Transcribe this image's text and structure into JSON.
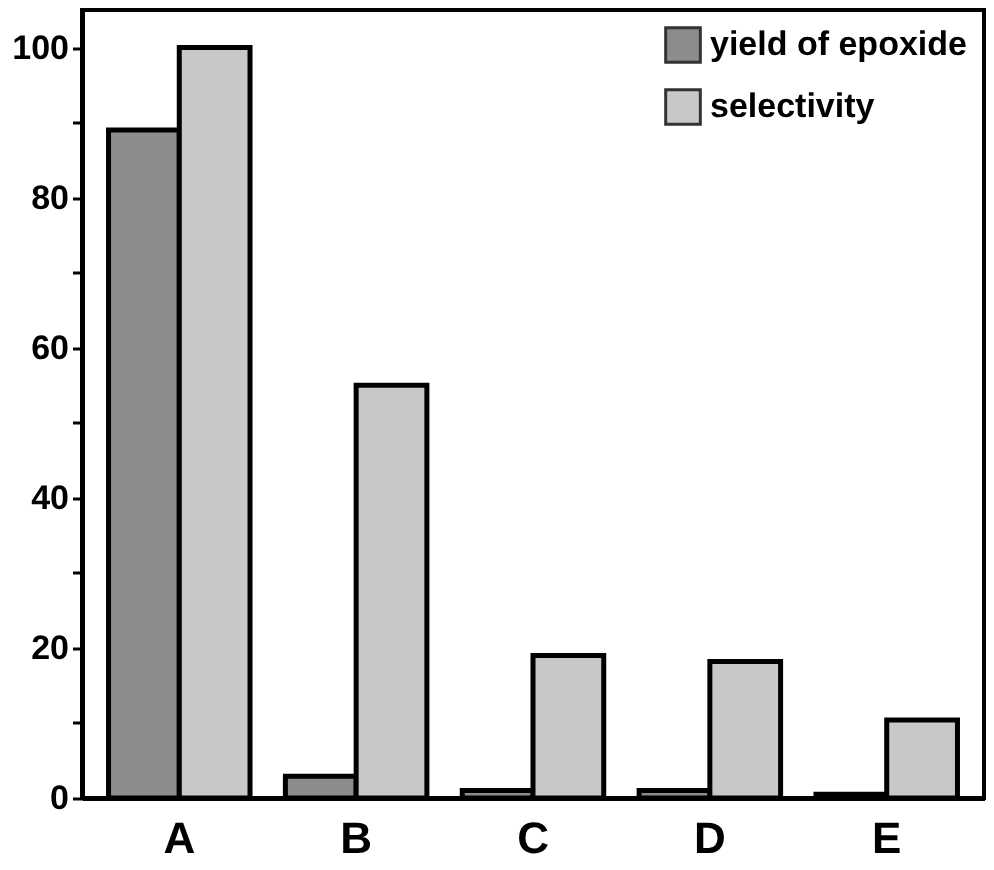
{
  "chart_data": {
    "type": "bar",
    "categories": [
      "A",
      "B",
      "C",
      "D",
      "E"
    ],
    "series": [
      {
        "name": "yield of epoxide",
        "color": "#8c8c8c",
        "values": [
          89,
          2.9,
          1,
          1,
          0.5
        ]
      },
      {
        "name": "selectivity",
        "color": "#c8c8c8",
        "values": [
          100,
          55,
          19,
          18.2,
          10.4
        ]
      }
    ],
    "ylim": [
      0,
      105
    ],
    "yticks": [
      0,
      {
        "value": 10,
        "label": null
      },
      20,
      {
        "value": 30,
        "label": null
      },
      40,
      {
        "value": 50,
        "label": null
      },
      60,
      {
        "value": 70,
        "label": null
      },
      80,
      {
        "value": 90,
        "label": null
      },
      100
    ],
    "legend": "top right",
    "grid": false
  }
}
